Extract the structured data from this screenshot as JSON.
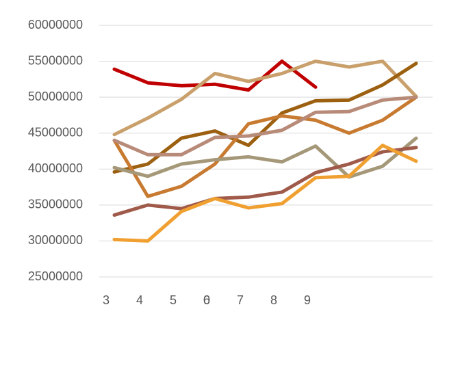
{
  "chart_data": {
    "type": "line",
    "categories": [
      "3",
      "4",
      "5",
      "6",
      "7",
      "8",
      "9",
      null,
      null,
      null
    ],
    "annotations": [
      {
        "text": "0",
        "category": 3
      }
    ],
    "series": [
      {
        "color": "#c00000",
        "values": [
          53900000,
          52000000,
          51600000,
          51800000,
          51000000,
          55000000,
          51400000,
          null,
          null,
          null
        ]
      },
      {
        "color": "#c9a06b",
        "values": [
          44800000,
          47100000,
          49700000,
          53300000,
          52200000,
          53300000,
          55000000,
          54200000,
          55000000,
          50100000
        ]
      },
      {
        "color": "#9c6010",
        "values": [
          39600000,
          40700000,
          44300000,
          45300000,
          43300000,
          47800000,
          49500000,
          49600000,
          51700000,
          54700000
        ]
      },
      {
        "color": "#c87a30",
        "values": [
          44000000,
          36200000,
          37600000,
          40700000,
          46300000,
          47400000,
          46800000,
          45000000,
          46800000,
          50000000
        ]
      },
      {
        "color": "#b88a78",
        "values": [
          44000000,
          42000000,
          42000000,
          44400000,
          44600000,
          45400000,
          47900000,
          48000000,
          49600000,
          50000000
        ]
      },
      {
        "color": "#a59878",
        "values": [
          40200000,
          39000000,
          40700000,
          41300000,
          41700000,
          41000000,
          43200000,
          38900000,
          40400000,
          44300000
        ]
      },
      {
        "color": "#a05a4a",
        "values": [
          33600000,
          35000000,
          34500000,
          35900000,
          36100000,
          36800000,
          39500000,
          40700000,
          42400000,
          43000000
        ]
      },
      {
        "color": "#f0a030",
        "values": [
          30200000,
          30000000,
          34100000,
          35900000,
          34600000,
          35200000,
          38800000,
          39000000,
          43300000,
          41100000
        ]
      }
    ],
    "ylim": [
      25000000,
      60000000
    ],
    "yticks": [
      25000000,
      30000000,
      35000000,
      40000000,
      45000000,
      50000000,
      55000000,
      60000000
    ],
    "grid": true
  }
}
